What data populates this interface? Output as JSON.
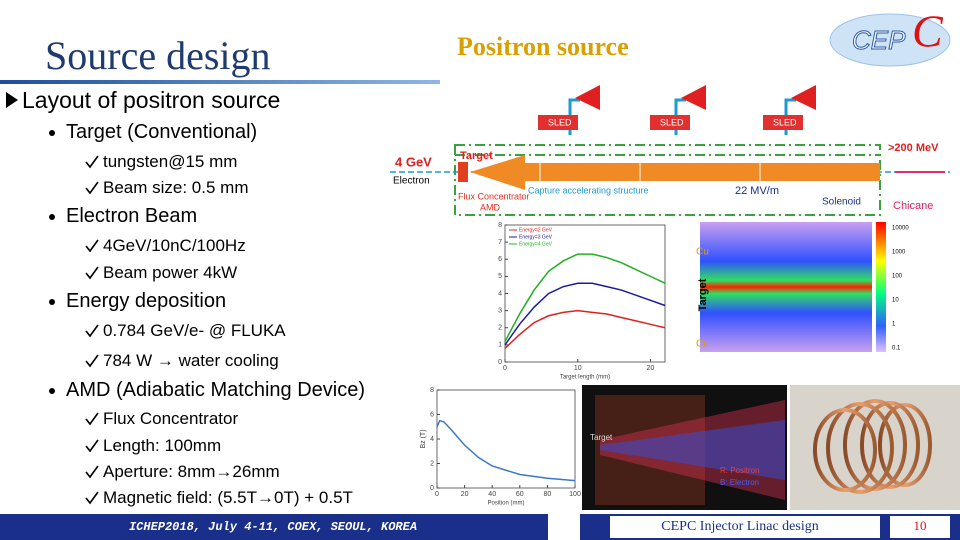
{
  "header": {
    "title": "Source design",
    "subtitle": "Positron source",
    "logo": {
      "text": "CEP",
      "mark": "C"
    }
  },
  "outline": {
    "heading": "Layout of positron source",
    "sections": [
      {
        "title": "Target (Conventional)",
        "items": [
          "tungsten@15 mm",
          "Beam size: 0.5 mm"
        ]
      },
      {
        "title": "Electron Beam",
        "items": [
          "4GeV/10nC/100Hz",
          "Beam power 4kW"
        ]
      },
      {
        "title": "Energy deposition",
        "items": [
          "0.784 GeV/e- @ FLUKA",
          "784 W → water cooling"
        ]
      },
      {
        "title": "AMD (Adiabatic Matching Device)",
        "items": [
          "Flux Concentrator",
          "Length: 100mm",
          "Aperture: 8mm→26mm",
          "Magnetic field: (5.5T→0T) + 0.5T"
        ]
      }
    ]
  },
  "figures": {
    "layout": {
      "sled": [
        "SLED",
        "SLED",
        "SLED"
      ],
      "beam": "4 GeV",
      "particle": "Electron",
      "target": "Target",
      "flux": "Flux Concentrator",
      "amd": "AMD",
      "capture": "Capture accelerating structure",
      "gradient": "22 MV/m",
      "solenoid": "Solenoid",
      "energy": ">200 MeV",
      "chicane": "Chicane"
    },
    "deposition": {
      "type": "line",
      "xlabel": "Target length (mm)",
      "x": [
        0,
        2,
        4,
        6,
        8,
        10,
        12,
        14,
        16,
        18,
        20,
        22
      ],
      "xlim": [
        0,
        22
      ],
      "xticks": [
        0,
        10,
        20
      ],
      "ylim": [
        0,
        8
      ],
      "yticks": [
        0,
        1,
        2,
        3,
        4,
        5,
        6,
        7,
        8
      ],
      "legend": "upper left",
      "series": [
        {
          "name": "Energy=2 GeV",
          "color": "#e02020",
          "values": [
            0.8,
            1.6,
            2.3,
            2.7,
            2.9,
            3.0,
            2.9,
            2.8,
            2.6,
            2.4,
            2.2,
            2.0
          ]
        },
        {
          "name": "Energy=3 GeV",
          "color": "#1a1aa0",
          "values": [
            1.0,
            2.2,
            3.2,
            4.0,
            4.4,
            4.6,
            4.6,
            4.4,
            4.2,
            3.9,
            3.6,
            3.3
          ]
        },
        {
          "name": "Energy=4 GeV",
          "color": "#20b020",
          "values": [
            1.2,
            2.8,
            4.2,
            5.3,
            5.9,
            6.3,
            6.3,
            6.1,
            5.8,
            5.4,
            5.0,
            4.6
          ]
        }
      ]
    },
    "heatmap": {
      "top": "Cu",
      "middle": "Target",
      "bottom": "Cu",
      "colorbar": [
        "10000",
        "1000",
        "100",
        "10",
        "1",
        "0.1"
      ]
    },
    "field": {
      "type": "line",
      "xlabel": "Position (mm)",
      "ylabel": "Bz (T)",
      "x": [
        0,
        2,
        5,
        10,
        20,
        30,
        40,
        60,
        80,
        100
      ],
      "xlim": [
        0,
        100
      ],
      "xticks": [
        0,
        20,
        40,
        60,
        80,
        100
      ],
      "ylim": [
        0,
        8
      ],
      "yticks": [
        0,
        2,
        4,
        6,
        8
      ],
      "series": [
        {
          "color": "#3a78c8",
          "values": [
            5.0,
            5.5,
            5.4,
            4.8,
            3.5,
            2.5,
            1.8,
            1.1,
            0.8,
            0.6
          ]
        }
      ]
    },
    "simulation": {
      "target": "Target",
      "positron": "R: Positron",
      "electron": "B: Electron"
    }
  },
  "footer": {
    "conference": "ICHEP2018, July 4-11, COEX, SEOUL, KOREA",
    "talk": "CEPC Injector Linac design",
    "page": "10"
  }
}
